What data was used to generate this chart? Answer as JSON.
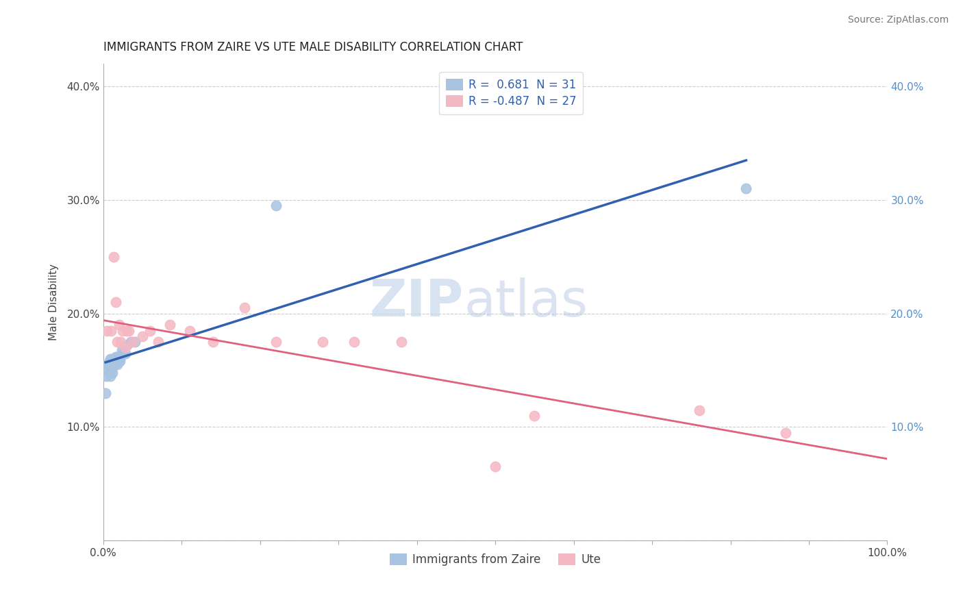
{
  "title": "IMMIGRANTS FROM ZAIRE VS UTE MALE DISABILITY CORRELATION CHART",
  "source": "Source: ZipAtlas.com",
  "ylabel": "Male Disability",
  "xlim": [
    0.0,
    1.0
  ],
  "ylim": [
    0.0,
    0.42
  ],
  "xticks": [
    0.0,
    0.1,
    0.2,
    0.3,
    0.4,
    0.5,
    0.6,
    0.7,
    0.8,
    0.9,
    1.0
  ],
  "xticklabels": [
    "0.0%",
    "",
    "",
    "",
    "",
    "",
    "",
    "",
    "",
    "",
    "100.0%"
  ],
  "yticks": [
    0.0,
    0.1,
    0.2,
    0.3,
    0.4
  ],
  "yticklabels": [
    "",
    "10.0%",
    "20.0%",
    "30.0%",
    "40.0%"
  ],
  "blue_r": 0.681,
  "blue_n": 31,
  "pink_r": -0.487,
  "pink_n": 27,
  "blue_scatter_color": "#a8c4e0",
  "pink_scatter_color": "#f4b8c4",
  "blue_line_color": "#3060b0",
  "pink_line_color": "#e06080",
  "dash_color": "#b0c8e8",
  "watermark_zip_color": "#c8d8ec",
  "watermark_atlas_color": "#b8c8e4",
  "blue_points_x": [
    0.003,
    0.004,
    0.005,
    0.006,
    0.007,
    0.008,
    0.009,
    0.009,
    0.01,
    0.01,
    0.011,
    0.012,
    0.012,
    0.013,
    0.014,
    0.015,
    0.016,
    0.017,
    0.018,
    0.019,
    0.02,
    0.021,
    0.022,
    0.024,
    0.026,
    0.028,
    0.03,
    0.035,
    0.04,
    0.22,
    0.82
  ],
  "blue_points_y": [
    0.13,
    0.145,
    0.155,
    0.15,
    0.155,
    0.158,
    0.16,
    0.145,
    0.15,
    0.155,
    0.152,
    0.148,
    0.16,
    0.155,
    0.155,
    0.16,
    0.162,
    0.158,
    0.155,
    0.162,
    0.16,
    0.158,
    0.162,
    0.168,
    0.165,
    0.165,
    0.172,
    0.175,
    0.175,
    0.295,
    0.31
  ],
  "pink_points_x": [
    0.005,
    0.01,
    0.013,
    0.016,
    0.018,
    0.02,
    0.022,
    0.025,
    0.028,
    0.03,
    0.033,
    0.038,
    0.05,
    0.06,
    0.07,
    0.085,
    0.11,
    0.14,
    0.18,
    0.22,
    0.28,
    0.32,
    0.38,
    0.5,
    0.55,
    0.76,
    0.87
  ],
  "pink_points_y": [
    0.185,
    0.185,
    0.25,
    0.21,
    0.175,
    0.19,
    0.175,
    0.185,
    0.17,
    0.185,
    0.185,
    0.175,
    0.18,
    0.185,
    0.175,
    0.19,
    0.185,
    0.175,
    0.205,
    0.175,
    0.175,
    0.175,
    0.175,
    0.065,
    0.11,
    0.115,
    0.095
  ],
  "legend_entries": [
    "Immigrants from Zaire",
    "Ute"
  ],
  "title_fontsize": 12,
  "source_fontsize": 10,
  "legend_fontsize": 12,
  "axis_fontsize": 11,
  "right_tick_color": "#5090d0"
}
